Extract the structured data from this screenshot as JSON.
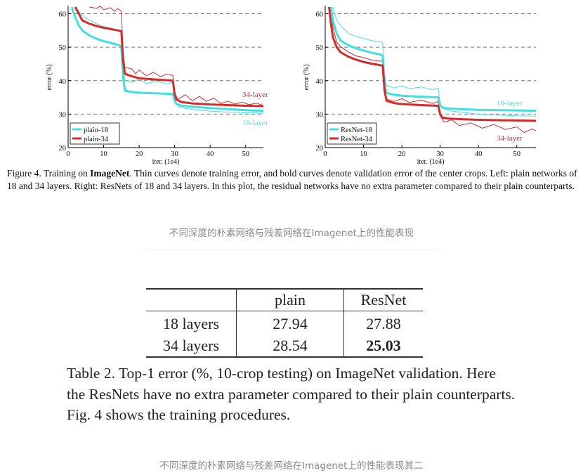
{
  "figure": {
    "caption_prefix": "Figure 4. Training on ",
    "caption_bold": "ImageNet",
    "caption_rest": ". Thin curves denote training error, and bold curves denote validation error of the center crops. Left: plain networks of 18 and 34 layers. Right: ResNets of 18 and 34 layers. In this plot, the residual networks have no extra parameter compared to their plain counterparts."
  },
  "caption_1": "不同深度的朴素网络与残差网络在Imagenet上的性能表现",
  "caption_2": "不同深度的朴素网络与残差网络在Imagenet上的性能表现其二",
  "table": {
    "headers": [
      "",
      "plain",
      "ResNet"
    ],
    "rows": [
      [
        "18 layers",
        "27.94",
        "27.88"
      ],
      [
        "34 layers",
        "28.54",
        "25.03"
      ]
    ],
    "caption": "Table 2. Top-1 error (%, 10-crop testing) on ImageNet validation. Here the ResNets have no extra parameter compared to their plain counterparts. Fig. 4 shows the training procedures."
  },
  "colors": {
    "cyan": "#40e0e0",
    "red": "#d42a2a"
  },
  "chart_data": [
    {
      "type": "line",
      "panel": "left",
      "xlabel": "iter. (1e4)",
      "ylabel": "error (%)",
      "xlim": [
        0,
        55
      ],
      "ylim": [
        20,
        62
      ],
      "xticks": [
        0,
        10,
        20,
        30,
        40,
        50
      ],
      "yticks": [
        20,
        30,
        40,
        50,
        60
      ],
      "grid": "dashed horizontal at 30, 40, 50, 60",
      "legend_position": "bottom-left",
      "annotations": [
        "34-layer",
        "18-layer"
      ],
      "series": [
        {
          "name": "plain-18",
          "role": "validation",
          "color": "cyan",
          "x": [
            1,
            2,
            3,
            4,
            6,
            8,
            10,
            12,
            14,
            15,
            15.5,
            16,
            18,
            20,
            25,
            29.5,
            30,
            30.5,
            32,
            35,
            40,
            45,
            50,
            55
          ],
          "y": [
            62,
            59,
            56.5,
            55,
            53.5,
            52.5,
            51.8,
            51.3,
            50.7,
            50.3,
            41,
            37,
            36.6,
            36.4,
            36.2,
            36,
            34,
            33,
            32.5,
            32.2,
            31.8,
            31.5,
            31.2,
            31.0
          ]
        },
        {
          "name": "plain-34",
          "role": "validation",
          "color": "red",
          "x": [
            2,
            3,
            4,
            6,
            8,
            10,
            12,
            14,
            15,
            15.5,
            16,
            18,
            20,
            25,
            29.5,
            30,
            30.5,
            32,
            35,
            40,
            45,
            50,
            55
          ],
          "y": [
            62,
            60,
            58,
            57,
            56.3,
            55.8,
            55.4,
            55.0,
            54.8,
            46,
            42,
            41.3,
            40.7,
            40.3,
            40.0,
            36,
            34.3,
            33.6,
            33.2,
            32.9,
            32.7,
            32.5,
            32.4
          ]
        },
        {
          "name": "plain-18 train",
          "role": "training",
          "color": "cyan",
          "x": [
            2,
            4,
            6,
            8,
            10,
            12,
            14,
            15,
            15.5,
            16,
            18,
            20,
            22,
            25,
            28,
            29.5,
            30,
            31,
            33,
            36,
            40,
            45,
            50,
            55
          ],
          "y": [
            62,
            59.5,
            58,
            57,
            56.2,
            55.7,
            55.1,
            55.0,
            44,
            40,
            39.5,
            40.5,
            39.2,
            39.8,
            39.0,
            39.5,
            34,
            32.2,
            31.7,
            31.3,
            30.9,
            30.6,
            30.4,
            30.3
          ]
        },
        {
          "name": "plain-34 train",
          "role": "training",
          "color": "red",
          "x": [
            6,
            8,
            9,
            10,
            12,
            13,
            14,
            15,
            15.5,
            16,
            18,
            19,
            20,
            22,
            24,
            26,
            28,
            29.5,
            30,
            31,
            33,
            35,
            37,
            39,
            41,
            43,
            45,
            47,
            49,
            51,
            53,
            55
          ],
          "y": [
            62,
            61.6,
            62.3,
            61.2,
            61.8,
            60.7,
            61.5,
            60.8,
            48,
            44,
            43.5,
            42,
            43.2,
            41.5,
            42.5,
            41.2,
            42.0,
            41.5,
            36,
            34.5,
            35.8,
            34.0,
            35.3,
            33.8,
            34.8,
            33.2,
            33.9,
            33.0,
            33.6,
            32.8,
            33.3,
            32.6
          ]
        }
      ]
    },
    {
      "type": "line",
      "panel": "right",
      "xlabel": "iter. (1e4)",
      "ylabel": "error (%)",
      "xlim": [
        0,
        55
      ],
      "ylim": [
        20,
        62
      ],
      "xticks": [
        0,
        10,
        20,
        30,
        40,
        50
      ],
      "yticks": [
        20,
        30,
        40,
        50,
        60
      ],
      "grid": "dashed horizontal at 30, 40, 50, 60",
      "legend_position": "bottom-left",
      "annotations": [
        "18-layer",
        "34-layer"
      ],
      "series": [
        {
          "name": "ResNet-18",
          "role": "validation",
          "color": "cyan",
          "x": [
            1.5,
            2,
            3,
            4,
            6,
            8,
            10,
            12,
            14,
            15,
            15.5,
            16,
            18,
            20,
            25,
            29.5,
            30,
            30.5,
            32,
            35,
            40,
            45,
            50,
            55
          ],
          "y": [
            62,
            58,
            54,
            52,
            50.6,
            49.7,
            49,
            48.4,
            47.9,
            47.5,
            39,
            36.3,
            35.8,
            35.5,
            35.2,
            35,
            32.8,
            32,
            31.7,
            31.5,
            31.3,
            31.2,
            31.1,
            31.0
          ]
        },
        {
          "name": "ResNet-34",
          "role": "validation",
          "color": "red",
          "x": [
            1,
            1.5,
            2,
            3,
            4,
            6,
            8,
            10,
            12,
            14,
            15,
            15.5,
            16,
            18,
            20,
            25,
            29.5,
            30,
            30.5,
            32,
            35,
            40,
            45,
            50,
            55
          ],
          "y": [
            62,
            57,
            53,
            50,
            48.5,
            47.2,
            46.3,
            45.6,
            45.1,
            44.7,
            44.5,
            37,
            34,
            33.3,
            33.0,
            32.7,
            32.5,
            30,
            29,
            28.7,
            28.5,
            28.3,
            28.2,
            28.1,
            28.0
          ]
        },
        {
          "name": "ResNet-18 train",
          "role": "training",
          "color": "cyan",
          "x": [
            2,
            3,
            4,
            6,
            8,
            10,
            12,
            14,
            15,
            15.5,
            16,
            18,
            20,
            22,
            25,
            28,
            29.5,
            30,
            31,
            33,
            36,
            40,
            45,
            50,
            55
          ],
          "y": [
            62,
            58,
            56.5,
            54.2,
            53.2,
            52.6,
            52.0,
            51.6,
            51.5,
            42,
            38.5,
            37.8,
            38.4,
            37.6,
            38.1,
            37.3,
            37.8,
            33,
            31.5,
            30.9,
            30.5,
            30.0,
            29.7,
            29.5,
            29.4
          ]
        },
        {
          "name": "ResNet-34 train",
          "role": "training",
          "color": "red",
          "x": [
            1.5,
            2,
            3,
            4,
            6,
            8,
            10,
            12,
            14,
            15,
            15.5,
            16,
            18,
            20,
            22,
            25,
            28,
            29.5,
            30,
            31,
            33,
            35,
            38,
            41,
            44,
            47,
            50,
            52,
            54,
            55
          ],
          "y": [
            62,
            56,
            51.5,
            50.2,
            48.6,
            47.4,
            46.9,
            46.2,
            45.9,
            45.8,
            37,
            34.5,
            33.8,
            34.6,
            33.5,
            34.2,
            33.2,
            33.8,
            29.5,
            27.6,
            28.3,
            26.6,
            27.4,
            25.8,
            26.9,
            25.4,
            26.2,
            24.5,
            25.6,
            25.0
          ]
        }
      ]
    }
  ]
}
